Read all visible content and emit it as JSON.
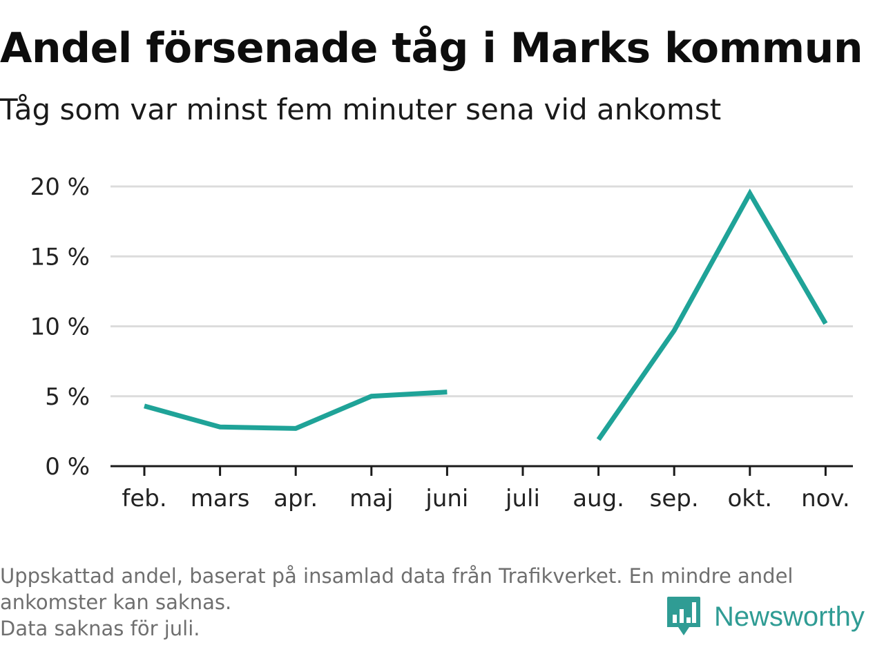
{
  "title": "Andel försenade tåg i Marks kommun",
  "subtitle": "Tåg som var minst fem minuter sena vid ankomst",
  "chart_data": {
    "type": "line",
    "categories": [
      "feb.",
      "mars",
      "apr.",
      "maj",
      "juni",
      "juli",
      "aug.",
      "sep.",
      "okt.",
      "nov."
    ],
    "series": [
      {
        "values": [
          4.3,
          2.8,
          2.7,
          5.0,
          5.3,
          null,
          1.9,
          9.7,
          19.5,
          10.2
        ],
        "color": "#1fa398"
      }
    ],
    "yticks": [
      "0 %",
      "5 %",
      "10 %",
      "15 %",
      "20 %"
    ],
    "ylim": [
      0,
      20
    ],
    "grid": true,
    "legend": "none"
  },
  "footer": {
    "line1": "Uppskattad andel, baserat på insamlad data från Trafikverket. En mindre andel",
    "line2": "ankomster kan saknas.",
    "line3": "Data saknas för juli."
  },
  "brand": {
    "name": "Newsworthy",
    "icon": "newsworthy-logo-icon",
    "color": "#2f9c94"
  }
}
